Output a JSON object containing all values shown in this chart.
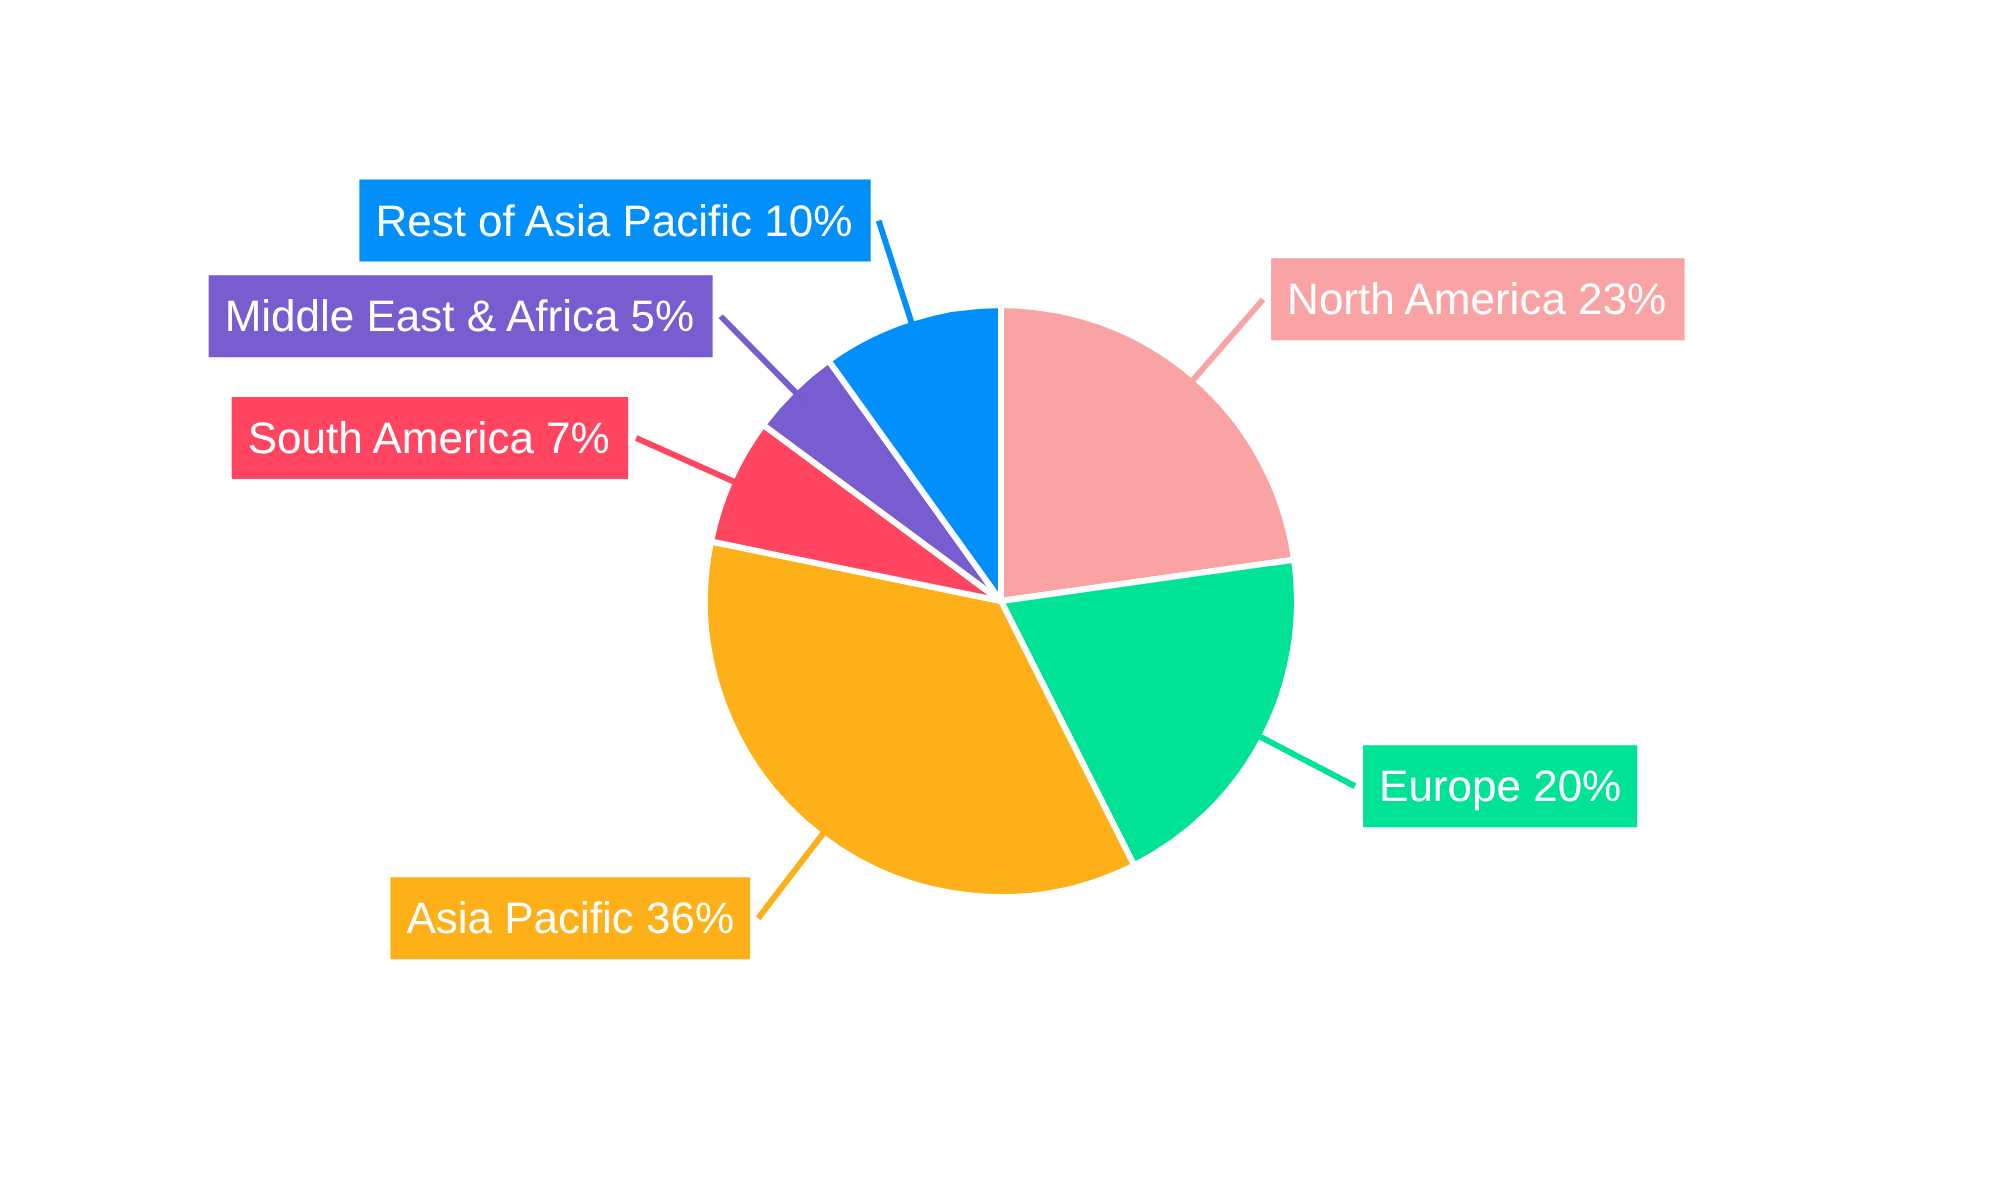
{
  "chart_data": {
    "type": "pie",
    "categories": [
      "North America",
      "Europe",
      "Asia Pacific",
      "South America",
      "Middle East & Africa",
      "Rest of Asia Pacific"
    ],
    "values": [
      23,
      20,
      36,
      7,
      5,
      10
    ],
    "value_labels": [
      "23%",
      "20%",
      "36%",
      "7%",
      "5%",
      "10%"
    ],
    "colors": [
      "#f9a3a4",
      "#00e396",
      "#feb019",
      "#ff4560",
      "#775dd0",
      "#008ffb"
    ]
  }
}
